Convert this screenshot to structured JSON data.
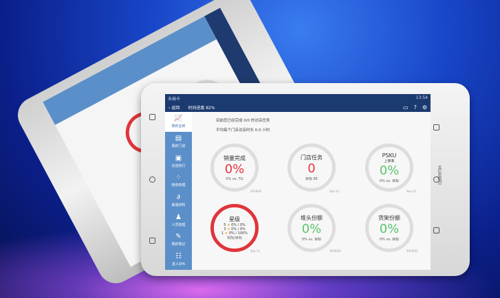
{
  "status": {
    "carrier": "未插卡",
    "time": "13:54"
  },
  "nav": {
    "back": "返回",
    "progress": "时间进度 82%",
    "icons": [
      "message-icon",
      "help-icon",
      "settings-icon"
    ]
  },
  "sidebar": {
    "items": [
      {
        "label": "我的业绩",
        "icon": "chart-icon",
        "active": true
      },
      {
        "label": "我的门店",
        "icon": "store-icon"
      },
      {
        "label": "访店执行",
        "icon": "clipboard-icon"
      },
      {
        "label": "物资管理",
        "icon": "grid-icon"
      },
      {
        "label": "渠道材料",
        "icon": "paperclip-icon"
      },
      {
        "label": "人员管理",
        "icon": "people-icon"
      },
      {
        "label": "我的笔记",
        "icon": "note-icon"
      },
      {
        "label": "进入SFA",
        "icon": "list-icon"
      }
    ]
  },
  "messages": [
    "目前您已经完成 0/0 的访店任务",
    "平均每个门店访店时长 0.0 小时"
  ],
  "cards": [
    {
      "title": "销量完成",
      "value": "0%",
      "note": "0% vs. TG",
      "date": "2016/02",
      "color": "#e8343a"
    },
    {
      "title": "门店任务",
      "value": "0",
      "note": "目标 85",
      "date": "Sep 13",
      "color": "#e8343a"
    },
    {
      "title": "PSKU",
      "subtitle": "上架率",
      "value": "0%",
      "note": "0% vs. 目标",
      "date": "Sep 13",
      "color": "#5ac46e"
    },
    {
      "title": "星级",
      "rows": [
        {
          "star": "5",
          "val": "0% / 0%"
        },
        {
          "star": "3",
          "val": "0% / 0%"
        },
        {
          "star": "1",
          "val": "0% / 100%"
        }
      ],
      "note": "实际/目标",
      "date": "Sep 13"
    },
    {
      "title": "堆头份额",
      "value": "0%",
      "note": "0% vs. 目标",
      "date": "2016/02",
      "color": "#5ac46e"
    },
    {
      "title": "货架份额",
      "value": "0%",
      "note": "0% vs. 目标",
      "date": "2016/02",
      "color": "#5ac46e"
    }
  ],
  "brand": "HUAWEI"
}
